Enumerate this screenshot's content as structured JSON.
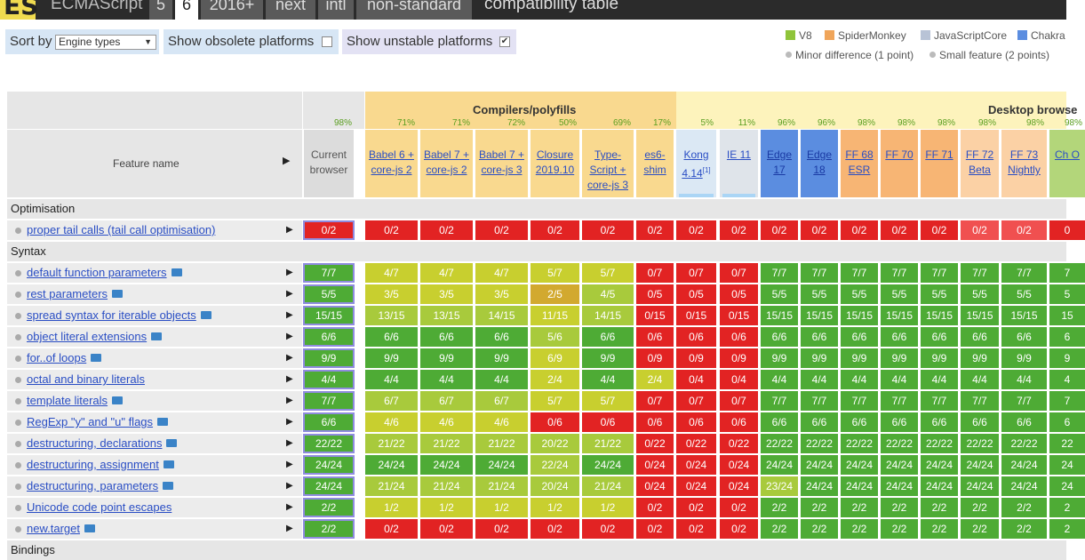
{
  "nav": {
    "logo": "ES",
    "brand": "ECMAScript",
    "tabs": [
      {
        "label": "5",
        "active": false
      },
      {
        "label": "6",
        "active": true
      },
      {
        "label": "2016+",
        "active": false
      },
      {
        "label": "next",
        "active": false
      },
      {
        "label": "intl",
        "active": false
      },
      {
        "label": "non-standard",
        "active": false
      }
    ],
    "title": "compatibility table"
  },
  "controls": {
    "sort_label": "Sort by",
    "sort_value": "Engine types",
    "obsolete_label": "Show obsolete platforms",
    "obsolete_checked": false,
    "unstable_label": "Show unstable platforms",
    "unstable_checked": true
  },
  "legend": {
    "engines": [
      {
        "name": "V8",
        "color": "#8fc43a"
      },
      {
        "name": "SpiderMonkey",
        "color": "#f0a55a"
      },
      {
        "name": "JavaScriptCore",
        "color": "#b8c3d6"
      },
      {
        "name": "Chakra",
        "color": "#5b8de0"
      }
    ],
    "minor": "Minor difference (1 point)",
    "small": "Small feature (2 points)"
  },
  "table": {
    "groups": [
      {
        "title": "Compilers/polyfills"
      },
      {
        "title": "Desktop browse"
      }
    ],
    "feature_header": "Feature name",
    "current_pct": "98%",
    "current_label": "Current browser",
    "browsers": [
      {
        "pct": "71%",
        "label": "Babel 6 + core-js 2"
      },
      {
        "pct": "71%",
        "label": "Babel 7 + core-js 2"
      },
      {
        "pct": "72%",
        "label": "Babel 7 + core-js 3"
      },
      {
        "pct": "50%",
        "label": "Closure 2019.10"
      },
      {
        "pct": "69%",
        "label": "Type-Script + core-js 3"
      },
      {
        "pct": "17%",
        "label": "es6-shim"
      },
      {
        "pct": "5%",
        "label": "Kong 4.14",
        "note": "[1]"
      },
      {
        "pct": "11%",
        "label": "IE 11"
      },
      {
        "pct": "96%",
        "label": "Edge 17"
      },
      {
        "pct": "96%",
        "label": "Edge 18"
      },
      {
        "pct": "98%",
        "label": "FF 68 ESR"
      },
      {
        "pct": "98%",
        "label": "FF 70"
      },
      {
        "pct": "98%",
        "label": "FF 71"
      },
      {
        "pct": "98%",
        "label": "FF 72 Beta"
      },
      {
        "pct": "98%",
        "label": "FF 73 Nightly"
      },
      {
        "pct": "98%",
        "label": "Ch O"
      }
    ],
    "sections": [
      {
        "name": "Optimisation",
        "rows": [
          {
            "feature": "proper tail calls (tail call optimisation)",
            "flag": false,
            "current": "0/2",
            "results": [
              "0/2",
              "0/2",
              "0/2",
              "0/2",
              "0/2",
              "0/2",
              "0/2",
              "0/2",
              "0/2",
              "0/2",
              "0/2",
              "0/2",
              "0/2",
              "0/2",
              "0/2",
              "0"
            ]
          }
        ]
      },
      {
        "name": "Syntax",
        "rows": [
          {
            "feature": "default function parameters",
            "flag": true,
            "current": "7/7",
            "results": [
              "4/7",
              "4/7",
              "4/7",
              "5/7",
              "5/7",
              "0/7",
              "0/7",
              "0/7",
              "7/7",
              "7/7",
              "7/7",
              "7/7",
              "7/7",
              "7/7",
              "7/7",
              "7"
            ]
          },
          {
            "feature": "rest parameters",
            "flag": true,
            "current": "5/5",
            "results": [
              "3/5",
              "3/5",
              "3/5",
              "2/5",
              "4/5",
              "0/5",
              "0/5",
              "0/5",
              "5/5",
              "5/5",
              "5/5",
              "5/5",
              "5/5",
              "5/5",
              "5/5",
              "5"
            ]
          },
          {
            "feature": "spread syntax for iterable objects",
            "flag": true,
            "current": "15/15",
            "results": [
              "13/15",
              "13/15",
              "14/15",
              "11/15",
              "14/15",
              "0/15",
              "0/15",
              "0/15",
              "15/15",
              "15/15",
              "15/15",
              "15/15",
              "15/15",
              "15/15",
              "15/15",
              "15"
            ]
          },
          {
            "feature": "object literal extensions",
            "flag": true,
            "current": "6/6",
            "results": [
              "6/6",
              "6/6",
              "6/6",
              "5/6",
              "6/6",
              "0/6",
              "0/6",
              "0/6",
              "6/6",
              "6/6",
              "6/6",
              "6/6",
              "6/6",
              "6/6",
              "6/6",
              "6"
            ]
          },
          {
            "feature": "for..of loops",
            "flag": true,
            "current": "9/9",
            "results": [
              "9/9",
              "9/9",
              "9/9",
              "6/9",
              "9/9",
              "0/9",
              "0/9",
              "0/9",
              "9/9",
              "9/9",
              "9/9",
              "9/9",
              "9/9",
              "9/9",
              "9/9",
              "9"
            ]
          },
          {
            "feature": "octal and binary literals",
            "flag": false,
            "current": "4/4",
            "results": [
              "4/4",
              "4/4",
              "4/4",
              "2/4",
              "4/4",
              "2/4",
              "0/4",
              "0/4",
              "4/4",
              "4/4",
              "4/4",
              "4/4",
              "4/4",
              "4/4",
              "4/4",
              "4"
            ]
          },
          {
            "feature": "template literals",
            "flag": true,
            "current": "7/7",
            "results": [
              "6/7",
              "6/7",
              "6/7",
              "5/7",
              "5/7",
              "0/7",
              "0/7",
              "0/7",
              "7/7",
              "7/7",
              "7/7",
              "7/7",
              "7/7",
              "7/7",
              "7/7",
              "7"
            ]
          },
          {
            "feature": "RegExp \"y\" and \"u\" flags",
            "flag": true,
            "current": "6/6",
            "results": [
              "4/6",
              "4/6",
              "4/6",
              "0/6",
              "0/6",
              "0/6",
              "0/6",
              "0/6",
              "6/6",
              "6/6",
              "6/6",
              "6/6",
              "6/6",
              "6/6",
              "6/6",
              "6"
            ]
          },
          {
            "feature": "destructuring, declarations",
            "flag": true,
            "current": "22/22",
            "results": [
              "21/22",
              "21/22",
              "21/22",
              "20/22",
              "21/22",
              "0/22",
              "0/22",
              "0/22",
              "22/22",
              "22/22",
              "22/22",
              "22/22",
              "22/22",
              "22/22",
              "22/22",
              "22"
            ]
          },
          {
            "feature": "destructuring, assignment",
            "flag": true,
            "current": "24/24",
            "results": [
              "24/24",
              "24/24",
              "24/24",
              "22/24",
              "24/24",
              "0/24",
              "0/24",
              "0/24",
              "24/24",
              "24/24",
              "24/24",
              "24/24",
              "24/24",
              "24/24",
              "24/24",
              "24"
            ]
          },
          {
            "feature": "destructuring, parameters",
            "flag": true,
            "current": "24/24",
            "results": [
              "21/24",
              "21/24",
              "21/24",
              "20/24",
              "21/24",
              "0/24",
              "0/24",
              "0/24",
              "23/24",
              "24/24",
              "24/24",
              "24/24",
              "24/24",
              "24/24",
              "24/24",
              "24"
            ]
          },
          {
            "feature": "Unicode code point escapes",
            "flag": false,
            "current": "2/2",
            "results": [
              "1/2",
              "1/2",
              "1/2",
              "1/2",
              "1/2",
              "0/2",
              "0/2",
              "0/2",
              "2/2",
              "2/2",
              "2/2",
              "2/2",
              "2/2",
              "2/2",
              "2/2",
              "2"
            ]
          },
          {
            "feature": "new.target",
            "flag": true,
            "current": "2/2",
            "results": [
              "0/2",
              "0/2",
              "0/2",
              "0/2",
              "0/2",
              "0/2",
              "0/2",
              "0/2",
              "2/2",
              "2/2",
              "2/2",
              "2/2",
              "2/2",
              "2/2",
              "2/2",
              "2"
            ]
          }
        ]
      },
      {
        "name": "Bindings",
        "rows": []
      }
    ]
  }
}
